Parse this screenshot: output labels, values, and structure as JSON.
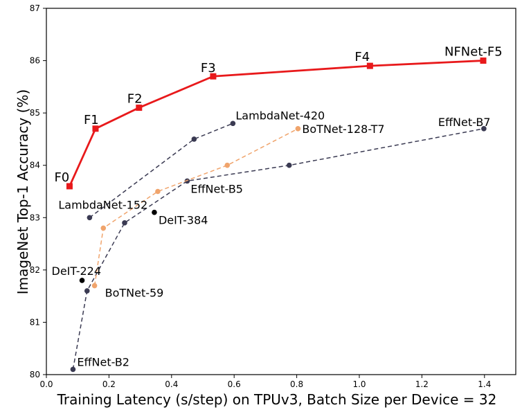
{
  "chart_data": {
    "type": "line",
    "title": "",
    "xlabel": "Training Latency (s/step) on TPUv3, Batch Size per Device = 32",
    "ylabel": "ImageNet Top-1 Accuracy (%)",
    "xlim": [
      0.0,
      1.5
    ],
    "ylim": [
      80,
      87
    ],
    "xticks": [
      0.0,
      0.2,
      0.4,
      0.6,
      0.8,
      1.0,
      1.2,
      1.4
    ],
    "xtick_labels": [
      "0.0",
      "0.2",
      "0.4",
      "0.6",
      "0.8",
      "1.0",
      "1.2",
      "1.4"
    ],
    "yticks": [
      80,
      81,
      82,
      83,
      84,
      85,
      86,
      87
    ],
    "ytick_labels": [
      "80",
      "81",
      "82",
      "83",
      "84",
      "85",
      "86",
      "87"
    ],
    "grid": false,
    "series": [
      {
        "key": "nfnet",
        "color": "#e8191b",
        "line": "solid",
        "marker": "square",
        "x": [
          0.074,
          0.157,
          0.296,
          0.533,
          1.034,
          1.396
        ],
        "y": [
          83.6,
          84.7,
          85.1,
          85.7,
          85.9,
          86.0
        ],
        "point_labels": [
          "F0",
          "F1",
          "F2",
          "F3",
          "F4",
          "NFNet-F5"
        ]
      },
      {
        "key": "lambdanet",
        "color": "#3a3a52",
        "line": "dashed",
        "marker": "circle",
        "x": [
          0.138,
          0.472,
          0.596
        ],
        "y": [
          83.0,
          84.5,
          84.8
        ],
        "point_labels": [
          "LambdaNet-152",
          "",
          "LambdaNet-420"
        ]
      },
      {
        "key": "botnet",
        "color": "#f0a46c",
        "line": "dashed",
        "marker": "circle",
        "x": [
          0.154,
          0.182,
          0.356,
          0.578,
          0.804
        ],
        "y": [
          81.7,
          82.8,
          83.5,
          84.0,
          84.7
        ],
        "point_labels": [
          "BoTNet-59",
          "",
          "",
          "",
          "BoTNet-128-T7"
        ]
      },
      {
        "key": "effnet",
        "color": "#3a3a52",
        "line": "dashed",
        "marker": "circle",
        "x": [
          0.085,
          0.13,
          0.25,
          0.45,
          0.776,
          1.398
        ],
        "y": [
          80.1,
          81.6,
          82.9,
          83.7,
          84.0,
          84.7
        ],
        "point_labels": [
          "EffNet-B2",
          "",
          "",
          "EffNet-B5",
          "",
          "EffNet-B7"
        ]
      },
      {
        "key": "deit",
        "color": "#000000",
        "line": "none",
        "marker": "circle",
        "x": [
          0.114,
          0.345
        ],
        "y": [
          81.8,
          83.1
        ],
        "point_labels": [
          "DeIT-224",
          "DeIT-384"
        ]
      }
    ]
  }
}
